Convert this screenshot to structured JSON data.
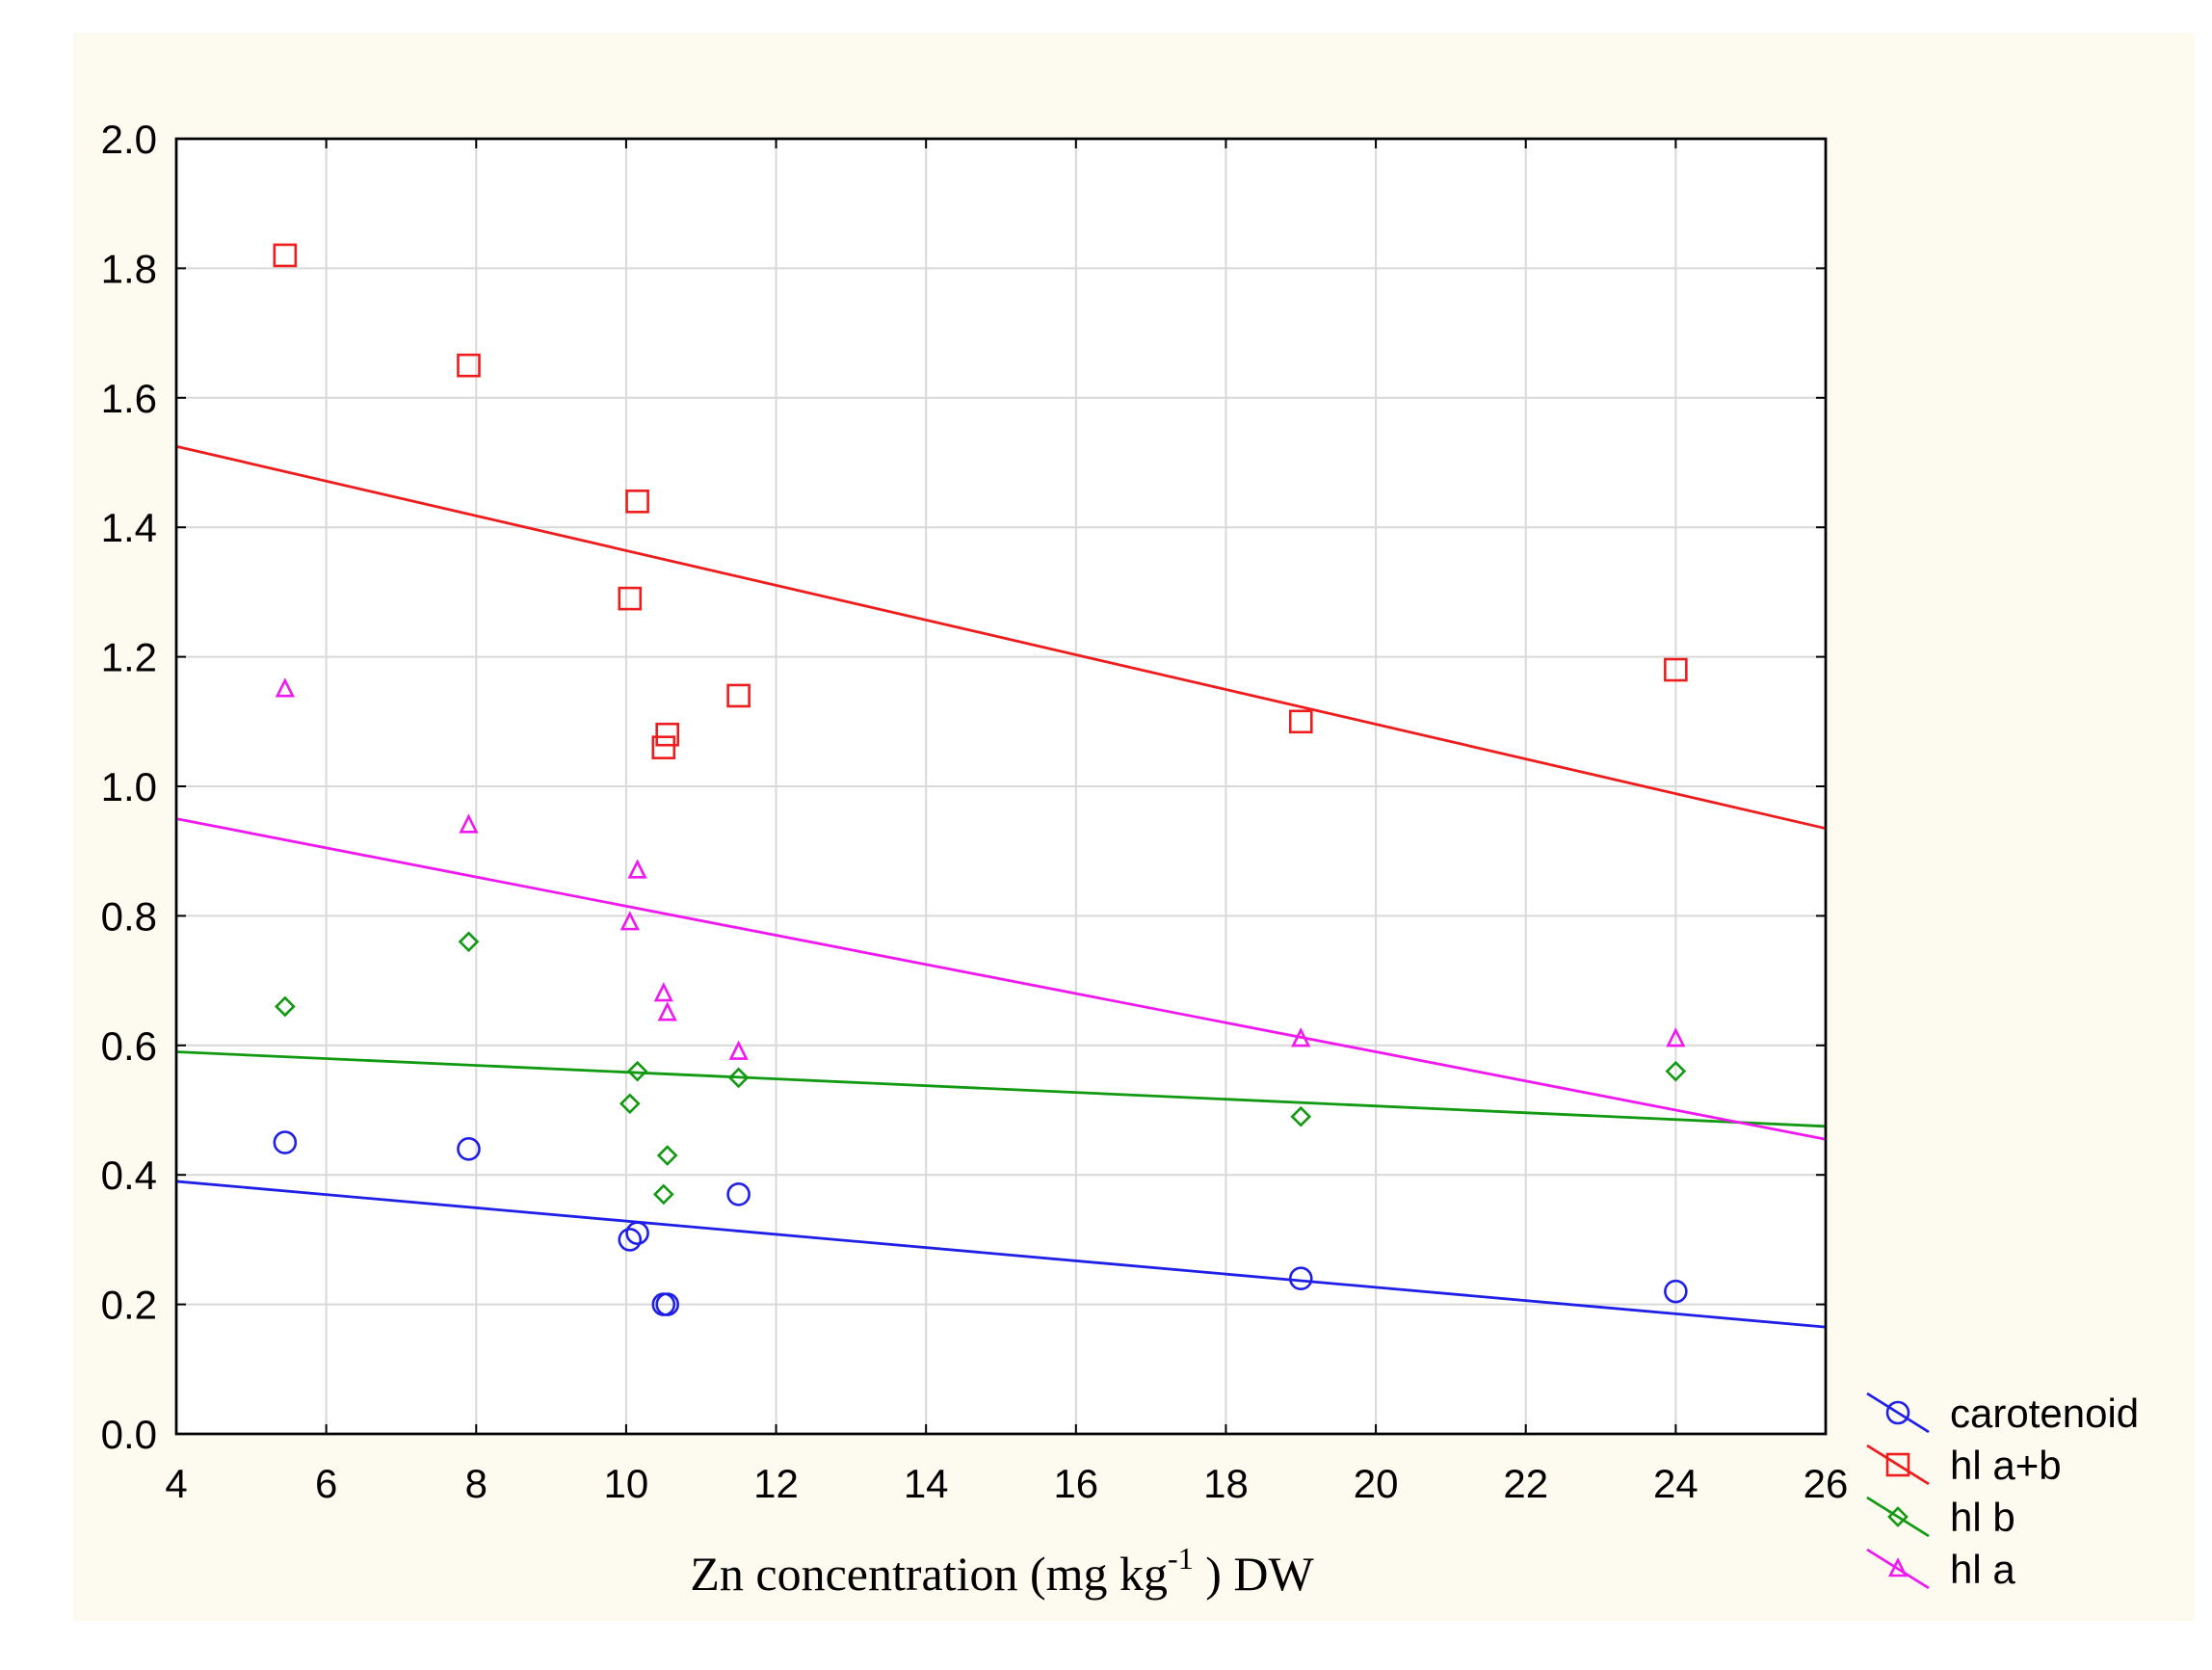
{
  "colors": {
    "background": "#fdfaf0",
    "plot_background": "#ffffff",
    "carotenoid": "#1f1fe8",
    "hl_a_plus_b": "#ee1c1c",
    "hl_b": "#119a11",
    "hl_a": "#f018f0"
  },
  "chart_data": {
    "type": "scatter",
    "title": "",
    "xlabel": "Zn concentration (mg kg",
    "xlabel_superscript": "-1",
    "xlabel_suffix": " ) DW",
    "ylabel": "",
    "xlim": [
      4,
      26
    ],
    "ylim": [
      0.0,
      2.0
    ],
    "x_ticks": [
      4,
      6,
      8,
      10,
      12,
      14,
      16,
      18,
      20,
      22,
      24,
      26
    ],
    "x_tick_labels": [
      "4",
      "6",
      "8",
      "10",
      "12",
      "14",
      "16",
      "18",
      "20",
      "22",
      "24",
      "26"
    ],
    "y_ticks": [
      0.0,
      0.2,
      0.4,
      0.6,
      0.8,
      1.0,
      1.2,
      1.4,
      1.6,
      1.8,
      2.0
    ],
    "y_tick_labels": [
      "0.0",
      "0.2",
      "0.4",
      "0.6",
      "0.8",
      "1.0",
      "1.2",
      "1.4",
      "1.6",
      "1.8",
      "2.0"
    ],
    "grid": true,
    "legend_position": "bottom-right outside",
    "series": [
      {
        "name": "carotenoid",
        "marker": "circle",
        "color": "#1f1fe8",
        "x": [
          5.45,
          7.9,
          10.05,
          10.15,
          10.5,
          10.55,
          11.5,
          19.0,
          24.0
        ],
        "y": [
          0.45,
          0.44,
          0.3,
          0.31,
          0.2,
          0.2,
          0.37,
          0.24,
          0.22
        ],
        "fit": {
          "x": [
            4,
            26
          ],
          "y": [
            0.39,
            0.165
          ]
        }
      },
      {
        "name": "hl a+b",
        "marker": "square",
        "color": "#ee1c1c",
        "x": [
          5.45,
          7.9,
          10.05,
          10.15,
          10.5,
          10.55,
          11.5,
          19.0,
          24.0
        ],
        "y": [
          1.82,
          1.65,
          1.29,
          1.44,
          1.06,
          1.08,
          1.14,
          1.1,
          1.18
        ],
        "fit": {
          "x": [
            4,
            26
          ],
          "y": [
            1.525,
            0.935
          ]
        }
      },
      {
        "name": "hl b",
        "marker": "diamond",
        "color": "#119a11",
        "x": [
          5.45,
          7.9,
          10.05,
          10.15,
          10.5,
          10.55,
          11.5,
          19.0,
          24.0
        ],
        "y": [
          0.66,
          0.76,
          0.51,
          0.56,
          0.37,
          0.43,
          0.55,
          0.49,
          0.56
        ],
        "fit": {
          "x": [
            4,
            26
          ],
          "y": [
            0.59,
            0.475
          ]
        }
      },
      {
        "name": "hl a",
        "marker": "triangle",
        "color": "#f018f0",
        "x": [
          5.45,
          7.9,
          10.05,
          10.15,
          10.5,
          10.55,
          11.5,
          19.0,
          24.0
        ],
        "y": [
          1.15,
          0.94,
          0.79,
          0.87,
          0.68,
          0.65,
          0.59,
          0.61,
          0.61
        ],
        "fit": {
          "x": [
            4,
            26
          ],
          "y": [
            0.95,
            0.455
          ]
        }
      }
    ]
  }
}
